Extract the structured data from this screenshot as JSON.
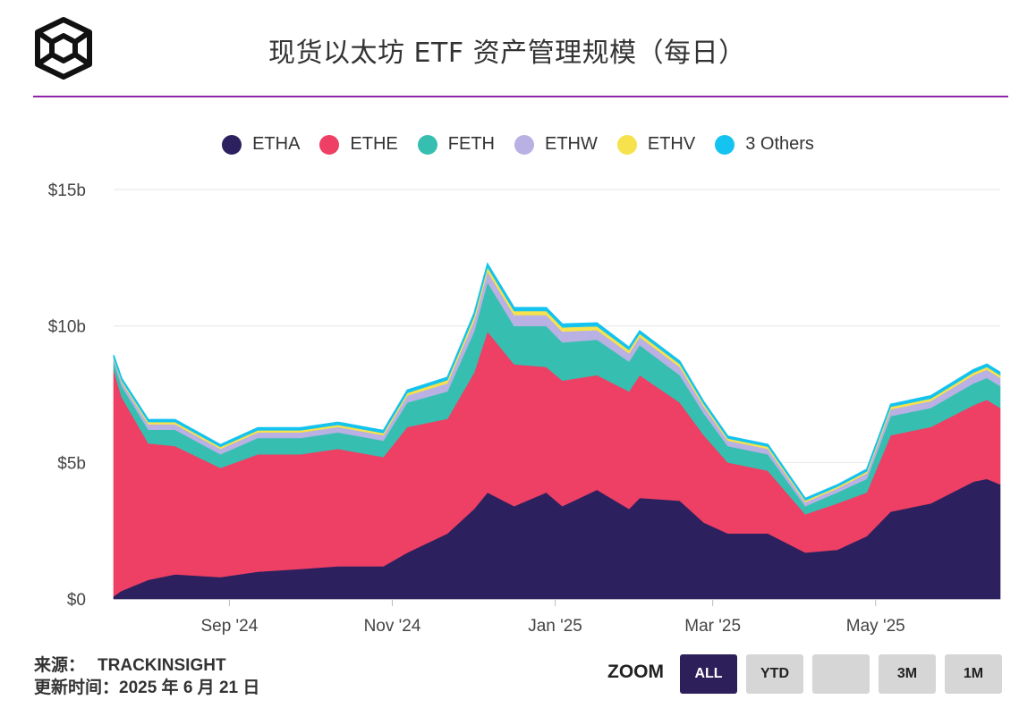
{
  "header": {
    "title": "现货以太坊 ETF 资产管理规模（每日）",
    "logo_icon": "cube-logo-icon"
  },
  "chart_data": {
    "type": "area",
    "stacked": true,
    "title": "现货以太坊 ETF 资产管理规模（每日）",
    "x_tick_labels": [
      "Sep '24",
      "Nov '24",
      "Jan '25",
      "Mar '25",
      "May '25"
    ],
    "y_tick_labels": [
      "$15b",
      "$10b",
      "$5b",
      "$0"
    ],
    "ylim": [
      0,
      15
    ],
    "y_unit": "billion USD",
    "x_range": [
      "2024-07-23",
      "2025-06-20"
    ],
    "grid": true,
    "legend_position": "top-center",
    "x": [
      "2024-07-23",
      "2024-07-26",
      "2024-08-05",
      "2024-08-15",
      "2024-09-01",
      "2024-09-15",
      "2024-10-01",
      "2024-10-15",
      "2024-11-01",
      "2024-11-10",
      "2024-11-25",
      "2024-12-05",
      "2024-12-10",
      "2024-12-20",
      "2025-01-01",
      "2025-01-07",
      "2025-01-20",
      "2025-02-01",
      "2025-02-05",
      "2025-02-20",
      "2025-03-01",
      "2025-03-10",
      "2025-03-25",
      "2025-04-08",
      "2025-04-20",
      "2025-05-01",
      "2025-05-10",
      "2025-05-25",
      "2025-06-10",
      "2025-06-15",
      "2025-06-20"
    ],
    "series": [
      {
        "name": "ETHA",
        "color": "#2c215e",
        "values": [
          0.1,
          0.3,
          0.7,
          0.9,
          0.8,
          1.0,
          1.1,
          1.2,
          1.2,
          1.7,
          2.4,
          3.3,
          3.9,
          3.4,
          3.9,
          3.4,
          4.0,
          3.3,
          3.7,
          3.6,
          2.8,
          2.4,
          2.4,
          1.7,
          1.8,
          2.3,
          3.2,
          3.5,
          4.3,
          4.4,
          4.2
        ]
      },
      {
        "name": "ETHE",
        "color": "#ee3f64",
        "values": [
          8.3,
          7.1,
          5.0,
          4.7,
          4.0,
          4.3,
          4.2,
          4.3,
          4.0,
          4.6,
          4.2,
          5.0,
          5.9,
          5.2,
          4.6,
          4.6,
          4.2,
          4.3,
          4.5,
          3.6,
          3.2,
          2.6,
          2.3,
          1.4,
          1.7,
          1.6,
          2.8,
          2.8,
          2.8,
          2.9,
          2.8
        ]
      },
      {
        "name": "FETH",
        "color": "#36bfb0",
        "values": [
          0.3,
          0.4,
          0.5,
          0.6,
          0.5,
          0.6,
          0.6,
          0.6,
          0.6,
          0.9,
          1.0,
          1.5,
          1.8,
          1.4,
          1.5,
          1.4,
          1.3,
          1.1,
          1.1,
          1.0,
          0.8,
          0.6,
          0.6,
          0.3,
          0.4,
          0.5,
          0.7,
          0.7,
          0.8,
          0.8,
          0.8
        ]
      },
      {
        "name": "ETHW",
        "color": "#b9b0e3",
        "values": [
          0.1,
          0.15,
          0.2,
          0.2,
          0.2,
          0.2,
          0.2,
          0.2,
          0.2,
          0.25,
          0.3,
          0.4,
          0.4,
          0.4,
          0.4,
          0.4,
          0.35,
          0.3,
          0.3,
          0.3,
          0.25,
          0.2,
          0.2,
          0.15,
          0.15,
          0.2,
          0.25,
          0.25,
          0.3,
          0.3,
          0.3
        ]
      },
      {
        "name": "ETHV",
        "color": "#f6e24c",
        "values": [
          0.03,
          0.05,
          0.08,
          0.08,
          0.07,
          0.08,
          0.08,
          0.08,
          0.08,
          0.1,
          0.12,
          0.15,
          0.15,
          0.15,
          0.15,
          0.15,
          0.14,
          0.12,
          0.12,
          0.11,
          0.09,
          0.08,
          0.08,
          0.06,
          0.06,
          0.07,
          0.09,
          0.09,
          0.1,
          0.1,
          0.1
        ]
      },
      {
        "name": "3 Others",
        "color": "#14c3ef",
        "values": [
          0.1,
          0.08,
          0.09,
          0.09,
          0.08,
          0.09,
          0.09,
          0.09,
          0.09,
          0.1,
          0.1,
          0.12,
          0.13,
          0.12,
          0.12,
          0.12,
          0.12,
          0.1,
          0.1,
          0.1,
          0.08,
          0.08,
          0.08,
          0.07,
          0.07,
          0.08,
          0.09,
          0.1,
          0.1,
          0.1,
          0.1
        ]
      }
    ]
  },
  "footer": {
    "source_label": "来源：",
    "source_value": "TRACKINSIGHT",
    "updated_label": "更新时间：",
    "updated_value": "2025 年 6 月 21 日"
  },
  "zoom": {
    "label": "ZOOM",
    "buttons": [
      "ALL",
      "YTD",
      "",
      "3M",
      "1M"
    ],
    "active": "ALL"
  }
}
